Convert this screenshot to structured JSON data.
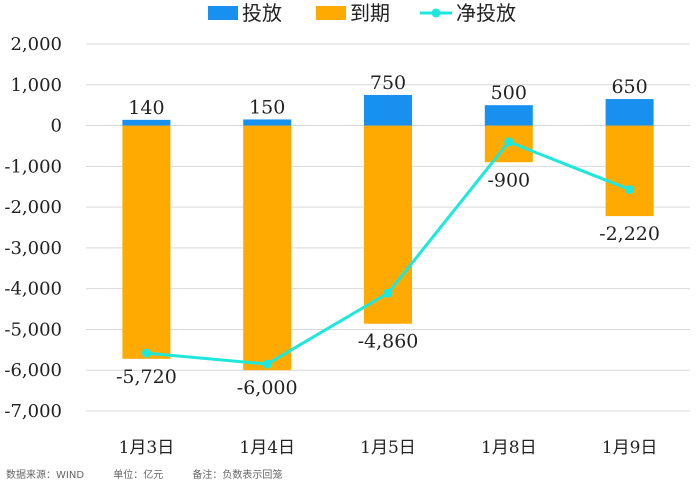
{
  "chart_data": {
    "type": "bar",
    "categories": [
      "1月3日",
      "1月4日",
      "1月5日",
      "1月8日",
      "1月9日"
    ],
    "series": [
      {
        "name": "投放",
        "type": "bar",
        "values": [
          140,
          150,
          750,
          500,
          650
        ],
        "color": "#1890f0"
      },
      {
        "name": "到期",
        "type": "bar",
        "values": [
          -5720,
          -6000,
          -4860,
          -900,
          -2220
        ],
        "color": "#ffaa00"
      },
      {
        "name": "净投放",
        "type": "line",
        "values": [
          -5580,
          -5850,
          -4110,
          -400,
          -1570
        ],
        "color": "#1ee8dc"
      }
    ],
    "data_labels": {
      "投放": [
        "140",
        "150",
        "750",
        "500",
        "650"
      ],
      "到期": [
        "-5,720",
        "-6,000",
        "-4,860",
        "-900",
        "-2,220"
      ]
    },
    "ylim": [
      -7000,
      2000
    ],
    "yticks": [
      2000,
      1000,
      0,
      -1000,
      -2000,
      -3000,
      -4000,
      -5000,
      -6000,
      -7000
    ],
    "ytick_labels": [
      "2,000",
      "1,000",
      "0",
      "-1,000",
      "-2,000",
      "-3,000",
      "-4,000",
      "-5,000",
      "-6,000",
      "-7,000"
    ],
    "grid": true,
    "legend_position": "top-center"
  },
  "footer": {
    "source": "数据来源：WIND",
    "unit": "单位：亿元",
    "note": "备注：负数表示回笼"
  }
}
